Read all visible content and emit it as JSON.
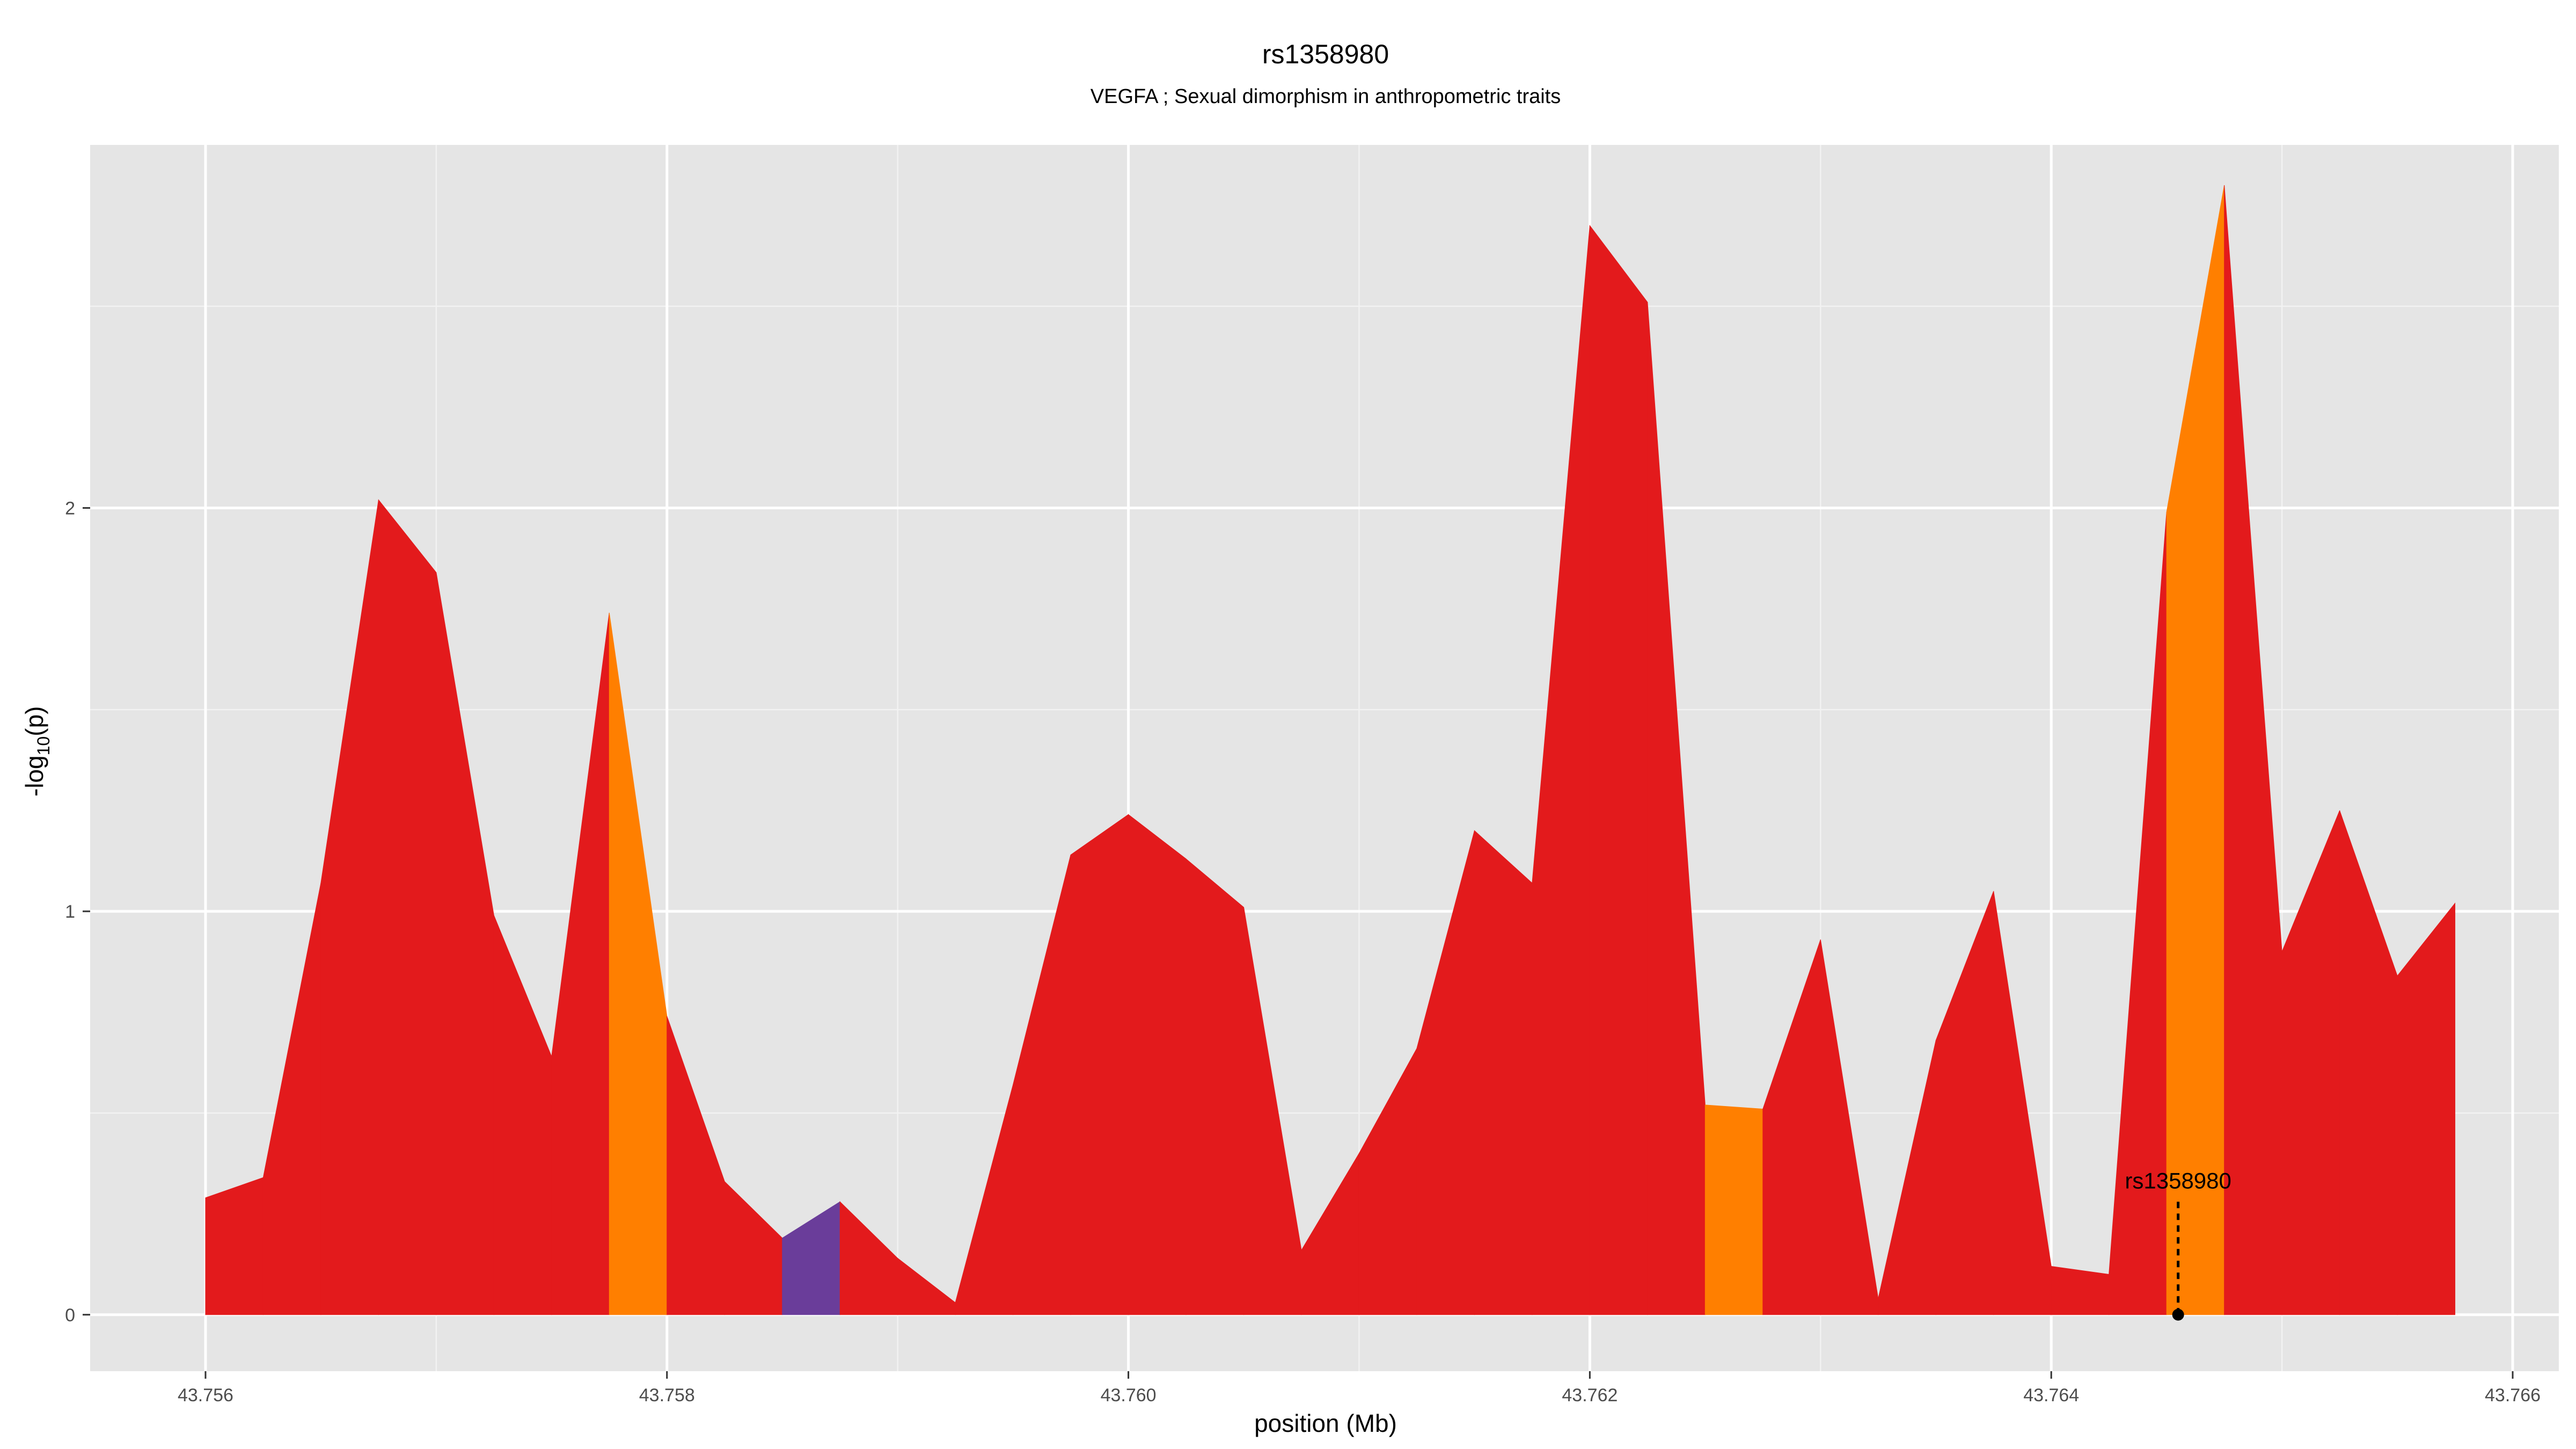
{
  "chart_data": {
    "type": "area",
    "title": "rs1358980",
    "subtitle": "VEGFA ; Sexual dimorphism in anthropometric traits",
    "xlabel": "position (Mb)",
    "ylabel_main": "-log",
    "ylabel_sub": "10",
    "ylabel_end": "(p)",
    "xlim": [
      43.7555,
      43.7662
    ],
    "ylim": [
      -0.14,
      2.9
    ],
    "x_ticks": [
      43.756,
      43.758,
      43.76,
      43.762,
      43.764,
      43.766
    ],
    "x_tick_labels": [
      "43.756",
      "43.758",
      "43.760",
      "43.762",
      "43.764",
      "43.766"
    ],
    "y_ticks": [
      0,
      1,
      2
    ],
    "y_tick_labels": [
      "0",
      "1",
      "2"
    ],
    "grid": true,
    "colors": {
      "panel": "#e5e5e5",
      "grid_major": "#ffffff",
      "grid_minor": "#f2f2f2",
      "red": "#e31a1c",
      "orange": "#ff7f00",
      "purple": "#6a3d9a"
    },
    "points": [
      {
        "x": 43.756,
        "y": 0.29,
        "c": "red"
      },
      {
        "x": 43.75625,
        "y": 0.34,
        "c": "red"
      },
      {
        "x": 43.7565,
        "y": 1.07,
        "c": "red"
      },
      {
        "x": 43.75675,
        "y": 2.02,
        "c": "red"
      },
      {
        "x": 43.757,
        "y": 1.84,
        "c": "red"
      },
      {
        "x": 43.75725,
        "y": 0.99,
        "c": "red"
      },
      {
        "x": 43.7575,
        "y": 0.64,
        "c": "red"
      },
      {
        "x": 43.75775,
        "y": 1.74,
        "c": "orange"
      },
      {
        "x": 43.758,
        "y": 0.74,
        "c": "red"
      },
      {
        "x": 43.75825,
        "y": 0.33,
        "c": "red"
      },
      {
        "x": 43.7585,
        "y": 0.19,
        "c": "purple"
      },
      {
        "x": 43.75875,
        "y": 0.28,
        "c": "red"
      },
      {
        "x": 43.759,
        "y": 0.14,
        "c": "red"
      },
      {
        "x": 43.75925,
        "y": 0.03,
        "c": "red"
      },
      {
        "x": 43.7595,
        "y": 0.57,
        "c": "red"
      },
      {
        "x": 43.75975,
        "y": 1.14,
        "c": "red"
      },
      {
        "x": 43.76,
        "y": 1.24,
        "c": "red"
      },
      {
        "x": 43.76025,
        "y": 1.13,
        "c": "red"
      },
      {
        "x": 43.7605,
        "y": 1.01,
        "c": "red"
      },
      {
        "x": 43.76075,
        "y": 0.16,
        "c": "red"
      },
      {
        "x": 43.761,
        "y": 0.4,
        "c": "red"
      },
      {
        "x": 43.76125,
        "y": 0.66,
        "c": "red"
      },
      {
        "x": 43.7615,
        "y": 1.2,
        "c": "red"
      },
      {
        "x": 43.76175,
        "y": 1.07,
        "c": "red"
      },
      {
        "x": 43.762,
        "y": 2.7,
        "c": "red"
      },
      {
        "x": 43.76225,
        "y": 2.51,
        "c": "red"
      },
      {
        "x": 43.7625,
        "y": 0.52,
        "c": "orange"
      },
      {
        "x": 43.76275,
        "y": 0.51,
        "c": "red"
      },
      {
        "x": 43.763,
        "y": 0.93,
        "c": "red"
      },
      {
        "x": 43.76325,
        "y": 0.04,
        "c": "red"
      },
      {
        "x": 43.7635,
        "y": 0.68,
        "c": "red"
      },
      {
        "x": 43.76375,
        "y": 1.05,
        "c": "red"
      },
      {
        "x": 43.764,
        "y": 0.12,
        "c": "red"
      },
      {
        "x": 43.76425,
        "y": 0.1,
        "c": "red"
      },
      {
        "x": 43.7645,
        "y": 1.99,
        "c": "orange"
      },
      {
        "x": 43.76475,
        "y": 2.8,
        "c": "red"
      },
      {
        "x": 43.765,
        "y": 0.9,
        "c": "red"
      },
      {
        "x": 43.76525,
        "y": 1.25,
        "c": "red"
      },
      {
        "x": 43.7655,
        "y": 0.84,
        "c": "red"
      },
      {
        "x": 43.76575,
        "y": 1.02,
        "c": "red"
      }
    ],
    "annotation": {
      "label": "rs1358980",
      "x": 43.76455,
      "y": 0.0,
      "line_top_y": 0.28
    }
  }
}
